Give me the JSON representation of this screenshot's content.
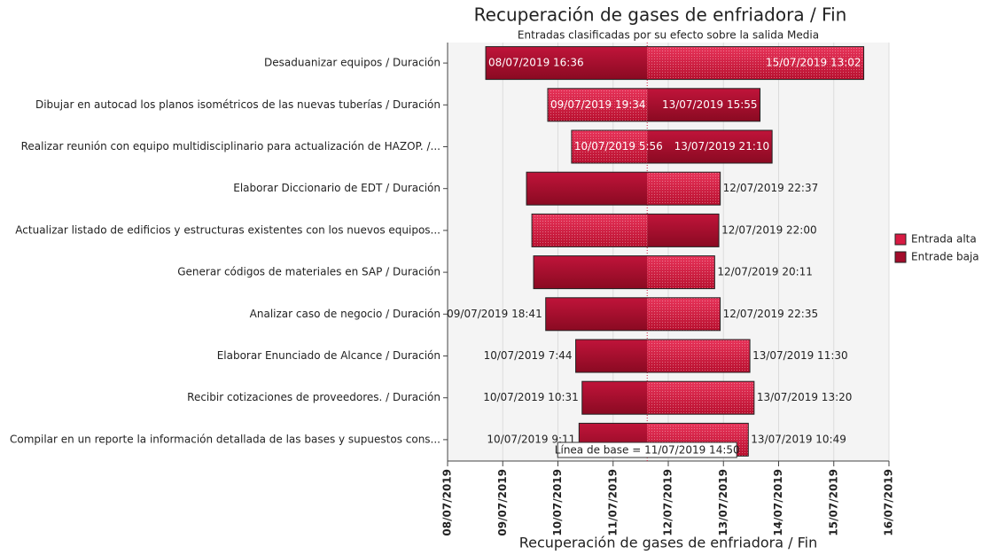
{
  "chart_data": {
    "type": "tornado",
    "title": "Recuperación de gases de enfriadora / Fin",
    "subtitle": "Entradas clasificadas por su efecto sobre la salida Media",
    "x_label": "Recuperación de gases de enfriadora / Fin",
    "baseline": "11/07/2019 14:50",
    "baseline_text": "Línea de base = 11/07/2019 14:50",
    "xlim": [
      "08/07/2019",
      "16/07/2019"
    ],
    "xticks": [
      "08/07/2019",
      "09/07/2019",
      "10/07/2019",
      "11/07/2019",
      "12/07/2019",
      "13/07/2019",
      "14/07/2019",
      "15/07/2019",
      "16/07/2019"
    ],
    "grid": true,
    "legend_position": "right",
    "series": [
      {
        "name": "Entrada alta",
        "color": "#d81b43"
      },
      {
        "name": "Entrade baja",
        "color": "#a30c2b"
      }
    ],
    "rows": [
      {
        "category": "Desaduanizar equipos / Duración",
        "low": "08/07/2019 16:36",
        "high": "15/07/2019 13:02",
        "low_label": "08/07/2019 16:36",
        "high_label": "15/07/2019 13:02",
        "left_series": 1,
        "labels_inside": true
      },
      {
        "category": "Dibujar en autocad los planos isométricos de las nuevas tuberías / Duración",
        "low": "09/07/2019 19:34",
        "high": "13/07/2019 15:55",
        "low_label": "09/07/2019 19:34",
        "high_label": "13/07/2019 15:55",
        "left_series": 0,
        "labels_inside": true
      },
      {
        "category": "Realizar reunión con equipo multidisciplinario para actualización de HAZOP. /...",
        "low": "10/07/2019 5:56",
        "high": "13/07/2019 21:10",
        "low_label": "10/07/2019 5:56",
        "high_label": "13/07/2019 21:10",
        "left_series": 0,
        "labels_inside": true
      },
      {
        "category": "Elaborar Diccionario de EDT / Duración",
        "low": "09/07/2019 10:20",
        "high": "12/07/2019 22:37",
        "low_label": null,
        "high_label": "12/07/2019 22:37",
        "left_series": 1,
        "labels_inside": false
      },
      {
        "category": "Actualizar listado de edificios y estructuras existentes con los nuevos equipos...",
        "low": "09/07/2019 12:40",
        "high": "12/07/2019 22:00",
        "low_label": null,
        "high_label": "12/07/2019 22:00",
        "left_series": 0,
        "labels_inside": false
      },
      {
        "category": "Generar códigos de materiales en SAP / Duración",
        "low": "09/07/2019 13:25",
        "high": "12/07/2019 20:11",
        "low_label": null,
        "high_label": "12/07/2019 20:11",
        "left_series": 1,
        "labels_inside": false
      },
      {
        "category": "Analizar caso de negocio / Duración",
        "low": "09/07/2019 18:41",
        "high": "12/07/2019 22:35",
        "low_label": "09/07/2019 18:41",
        "high_label": "12/07/2019 22:35",
        "left_series": 1,
        "labels_inside": false
      },
      {
        "category": "Elaborar Enunciado de Alcance / Duración",
        "low": "10/07/2019 7:44",
        "high": "13/07/2019 11:30",
        "low_label": "10/07/2019 7:44",
        "high_label": "13/07/2019 11:30",
        "left_series": 1,
        "labels_inside": false
      },
      {
        "category": "Recibir cotizaciones de proveedores. / Duración",
        "low": "10/07/2019 10:31",
        "high": "13/07/2019 13:20",
        "low_label": "10/07/2019 10:31",
        "high_label": "13/07/2019 13:20",
        "left_series": 1,
        "labels_inside": false
      },
      {
        "category": "Compilar en un reporte la información detallada de las bases y supuestos cons...",
        "low": "10/07/2019 9:11",
        "high": "13/07/2019 10:49",
        "low_label": "10/07/2019 9:11",
        "high_label": "13/07/2019 10:49",
        "left_series": 1,
        "labels_inside": false
      }
    ]
  }
}
